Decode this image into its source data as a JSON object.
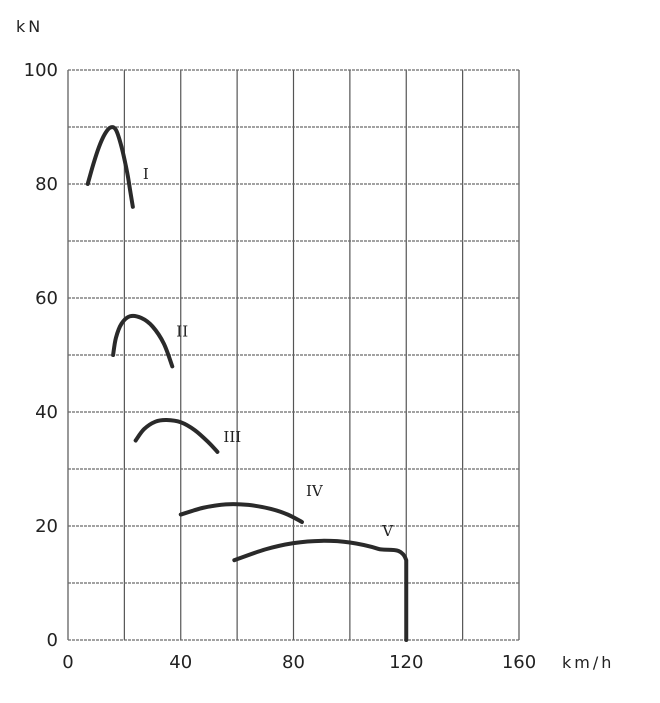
{
  "chart_data": {
    "type": "line",
    "title": "",
    "xlabel": "km/h",
    "ylabel": "kN",
    "xlim": [
      0,
      160
    ],
    "ylim": [
      0,
      100
    ],
    "x_ticks": [
      0,
      40,
      80,
      120,
      160
    ],
    "y_ticks": [
      0,
      20,
      40,
      60,
      80,
      100
    ],
    "x_tick_labels": [
      "0",
      "40",
      "80",
      "120",
      "160"
    ],
    "y_tick_labels": [
      "0",
      "20",
      "40",
      "60",
      "80",
      "100"
    ],
    "grid": true,
    "legend": "none",
    "series": [
      {
        "name": "I",
        "points": [
          [
            7,
            80
          ],
          [
            9,
            83.5
          ],
          [
            11,
            86.5
          ],
          [
            13,
            88.7
          ],
          [
            15,
            89.9
          ],
          [
            17,
            89.5
          ],
          [
            19,
            86.5
          ],
          [
            21,
            82
          ],
          [
            22,
            79
          ],
          [
            23,
            76
          ]
        ]
      },
      {
        "name": "II",
        "points": [
          [
            16,
            50
          ],
          [
            17,
            53
          ],
          [
            19,
            55.5
          ],
          [
            22,
            56.8
          ],
          [
            26,
            56.5
          ],
          [
            30,
            55
          ],
          [
            34,
            52
          ],
          [
            37,
            48
          ]
        ]
      },
      {
        "name": "III",
        "points": [
          [
            24,
            35
          ],
          [
            27,
            37
          ],
          [
            31,
            38.3
          ],
          [
            35,
            38.6
          ],
          [
            40,
            38.2
          ],
          [
            45,
            36.8
          ],
          [
            50,
            34.6
          ],
          [
            53,
            33
          ]
        ]
      },
      {
        "name": "IV",
        "points": [
          [
            40,
            22
          ],
          [
            48,
            23.2
          ],
          [
            56,
            23.8
          ],
          [
            64,
            23.7
          ],
          [
            72,
            23
          ],
          [
            78,
            22
          ],
          [
            83,
            20.7
          ]
        ]
      },
      {
        "name": "V",
        "points": [
          [
            59,
            14
          ],
          [
            70,
            15.9
          ],
          [
            80,
            17
          ],
          [
            90,
            17.4
          ],
          [
            100,
            17.1
          ],
          [
            110,
            16
          ],
          [
            120,
            14
          ],
          [
            120,
            0
          ]
        ]
      }
    ]
  }
}
